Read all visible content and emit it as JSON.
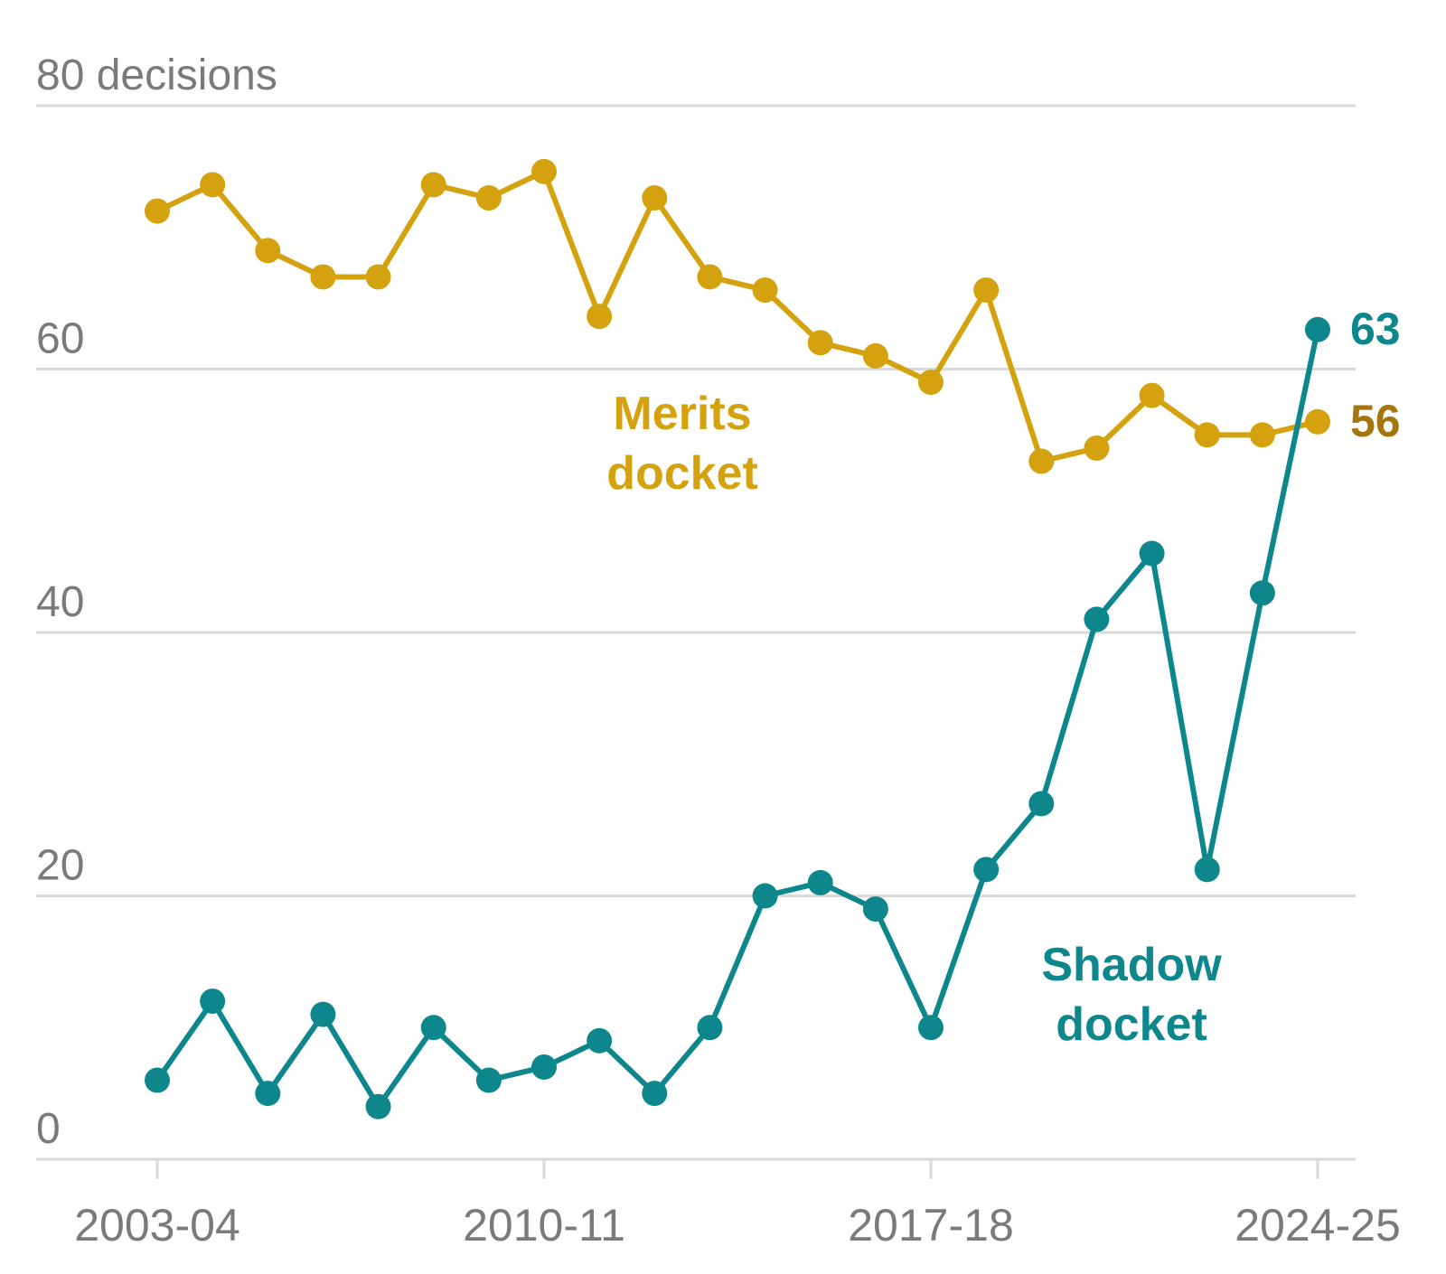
{
  "chart_data": {
    "type": "line",
    "ylim": [
      0,
      80
    ],
    "y_unit_label": "decisions",
    "y_ticks": [
      0,
      20,
      40,
      60,
      80
    ],
    "x_tick_labels": [
      "2003-04",
      "2010-11",
      "2017-18",
      "2024-25"
    ],
    "x_tick_positions": [
      2003,
      2010,
      2017,
      2024
    ],
    "x": [
      2003,
      2004,
      2005,
      2006,
      2007,
      2008,
      2009,
      2010,
      2011,
      2012,
      2013,
      2014,
      2015,
      2016,
      2017,
      2018,
      2019,
      2020,
      2021,
      2022,
      2023,
      2024
    ],
    "series": [
      {
        "name": "Merits docket",
        "label_lines": [
          "Merits",
          "docket"
        ],
        "color": "#d4a20f",
        "end_label_color": "#a5760e",
        "end_label": "56",
        "values": [
          72,
          74,
          69,
          67,
          67,
          74,
          73,
          75,
          64,
          73,
          67,
          66,
          62,
          61,
          59,
          66,
          53,
          54,
          58,
          55,
          55,
          56
        ]
      },
      {
        "name": "Shadow docket",
        "label_lines": [
          "Shadow",
          "docket"
        ],
        "color": "#0e878c",
        "end_label_color": "#0e878c",
        "end_label": "63",
        "values": [
          6,
          12,
          5,
          11,
          4,
          10,
          6,
          7,
          9,
          5,
          10,
          20,
          21,
          19,
          10,
          22,
          27,
          41,
          46,
          22,
          43,
          63
        ]
      }
    ]
  }
}
